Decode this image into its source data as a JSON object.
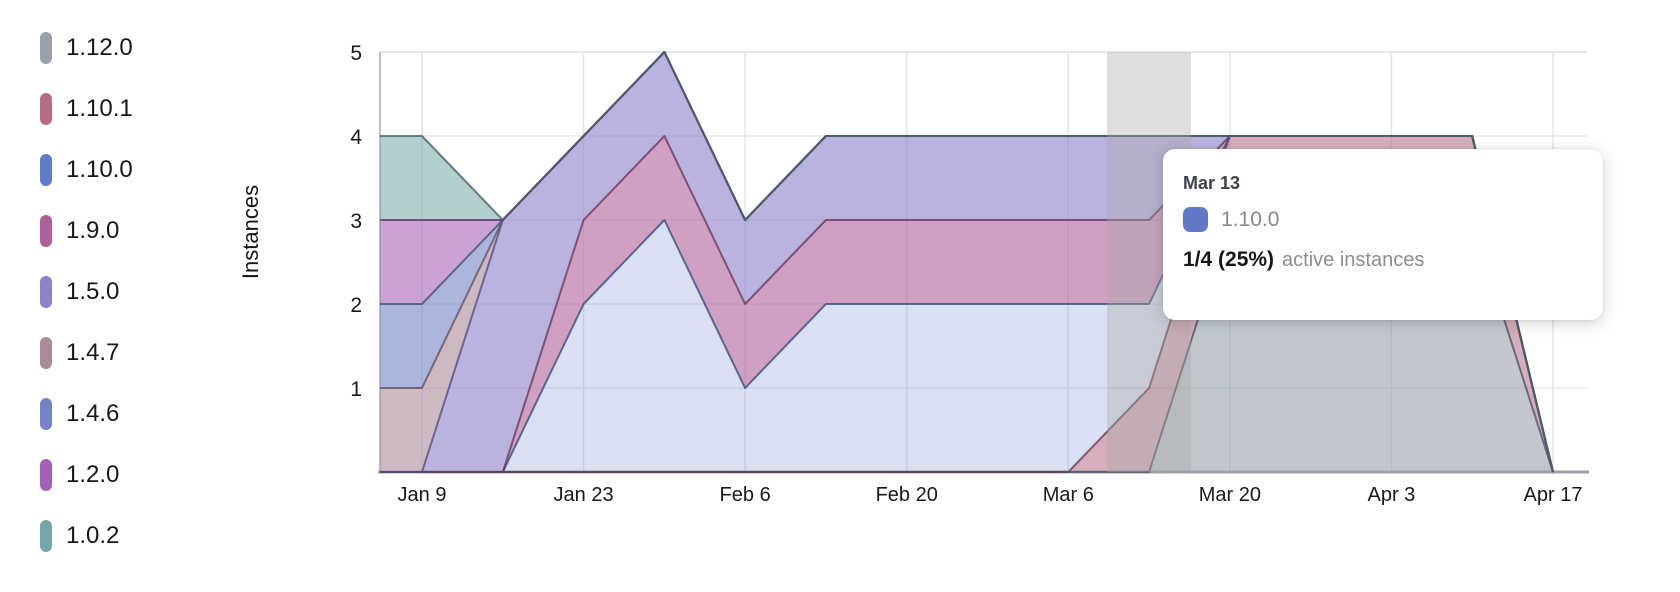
{
  "chart_data": {
    "type": "area",
    "stacked": true,
    "title": "",
    "xlabel": "",
    "ylabel": "Instances",
    "ylim": [
      0,
      5
    ],
    "y_ticks": [
      1,
      2,
      3,
      4,
      5
    ],
    "grid": true,
    "legend_position": "left",
    "x": [
      "Jan 2",
      "Jan 9",
      "Jan 16",
      "Jan 23",
      "Jan 30",
      "Feb 6",
      "Feb 13",
      "Feb 20",
      "Feb 27",
      "Mar 6",
      "Mar 13",
      "Mar 20",
      "Mar 27",
      "Apr 3",
      "Apr 10",
      "Apr 17"
    ],
    "x_tick_labels": [
      "Jan 9",
      "Jan 23",
      "Feb 6",
      "Feb 20",
      "Mar 6",
      "Mar 20",
      "Apr 3",
      "Apr 17"
    ],
    "x_tick_indices": [
      1,
      3,
      5,
      7,
      9,
      11,
      13,
      15
    ],
    "stack_note": "series listed bottom-of-stack first; legend shows same order top-to-bottom",
    "series": [
      {
        "name": "1.12.0",
        "color": "#98a1ab",
        "stroke": "#4e5668",
        "fill_opacity": 0.6,
        "values": [
          0,
          0,
          0,
          0,
          0,
          0,
          0,
          0,
          0,
          0,
          0,
          3,
          3,
          3,
          3,
          0
        ]
      },
      {
        "name": "1.10.1",
        "color": "#b56b84",
        "stroke": "#6d3e52",
        "fill_opacity": 0.55,
        "values": [
          0,
          0,
          0,
          0,
          0,
          0,
          0,
          0,
          0,
          0,
          1,
          1,
          1,
          1,
          1,
          0
        ]
      },
      {
        "name": "1.10.0",
        "color": "#5f7dc8",
        "stroke": "#3a4e7e",
        "fill_opacity": 0.24,
        "values": [
          0,
          0,
          0,
          2,
          3,
          1,
          2,
          2,
          2,
          2,
          1,
          0,
          0,
          0,
          0,
          0
        ]
      },
      {
        "name": "1.9.0",
        "color": "#b0619b",
        "stroke": "#6b3a5f",
        "fill_opacity": 0.6,
        "values": [
          0,
          0,
          0,
          1,
          1,
          1,
          1,
          1,
          1,
          1,
          1,
          0,
          0,
          0,
          0,
          0
        ]
      },
      {
        "name": "1.5.0",
        "color": "#8e80ca",
        "stroke": "#564e7e",
        "fill_opacity": 0.6,
        "values": [
          0,
          0,
          3,
          1,
          1,
          1,
          1,
          1,
          1,
          1,
          1,
          0,
          0,
          0,
          0,
          0
        ]
      },
      {
        "name": "1.4.7",
        "color": "#aa8b9a",
        "stroke": "#675460",
        "fill_opacity": 0.6,
        "values": [
          1,
          1,
          0,
          0,
          0,
          0,
          0,
          0,
          0,
          0,
          0,
          0,
          0,
          0,
          0,
          0
        ]
      },
      {
        "name": "1.4.6",
        "color": "#7583c6",
        "stroke": "#47507c",
        "fill_opacity": 0.6,
        "values": [
          1,
          1,
          0,
          0,
          0,
          0,
          0,
          0,
          0,
          0,
          0,
          0,
          0,
          0,
          0,
          0
        ]
      },
      {
        "name": "1.2.0",
        "color": "#a361b5",
        "stroke": "#60346c",
        "fill_opacity": 0.58,
        "values": [
          1,
          1,
          0,
          0,
          0,
          0,
          0,
          0,
          0,
          0,
          0,
          0,
          0,
          0,
          0,
          0
        ]
      },
      {
        "name": "1.0.2",
        "color": "#74a5a8",
        "stroke": "#466568",
        "fill_opacity": 0.55,
        "values": [
          1,
          1,
          0,
          0,
          0,
          0,
          0,
          0,
          0,
          0,
          0,
          0,
          0,
          0,
          0,
          0
        ]
      }
    ],
    "hover": {
      "date": "Mar 13",
      "x_index": 10
    }
  },
  "ylabel": "Instances",
  "tooltip": {
    "date": "Mar 13",
    "series_name": "1.10.0",
    "swatch_color": "#6478c8",
    "value": "1/4 (25%)",
    "suffix": "active instances"
  }
}
